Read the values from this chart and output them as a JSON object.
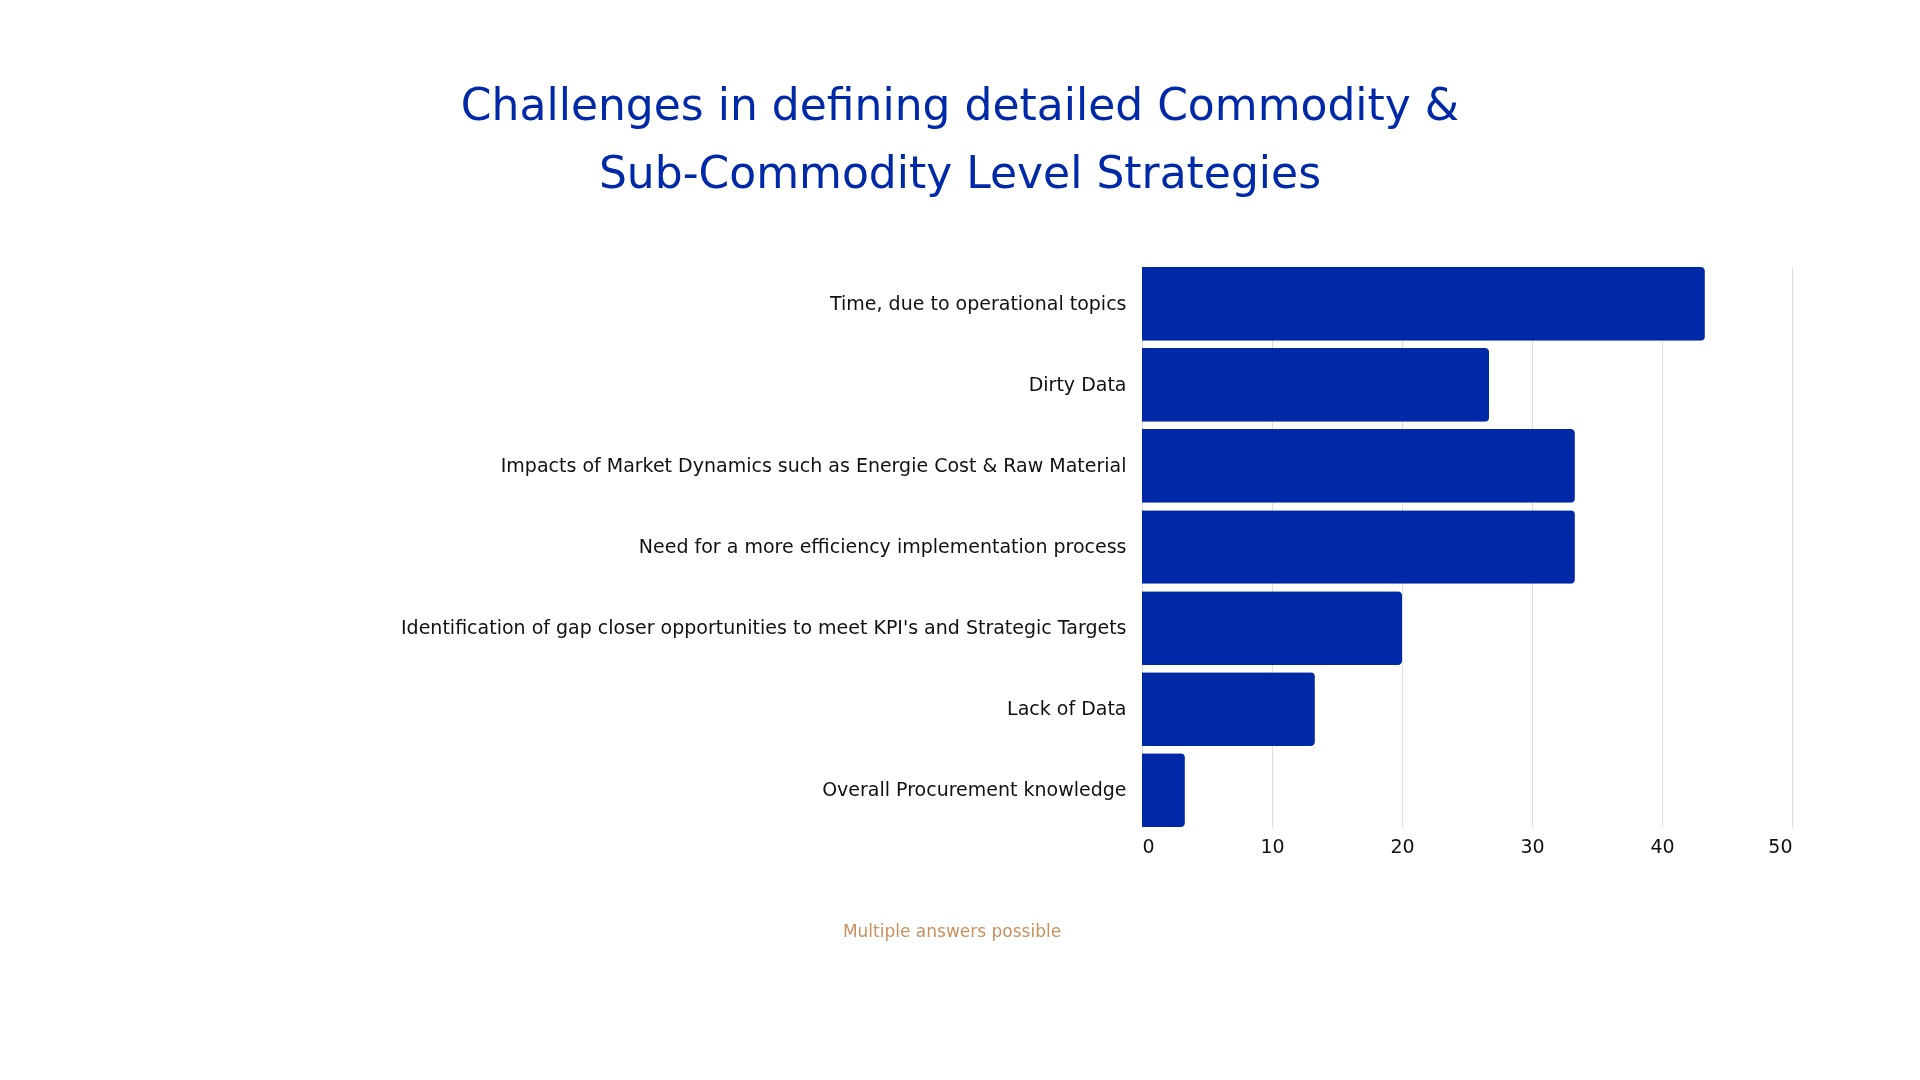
{
  "chart_data": {
    "type": "bar",
    "orientation": "horizontal",
    "title": [
      "Challenges in defining detailed Commodity &",
      "Sub-Commodity Level Strategies"
    ],
    "categories": [
      "Time, due to operational topics",
      "Dirty Data",
      "Impacts of Market Dynamics such as Energie Cost & Raw Material",
      "Need for a more efficiency implementation process",
      "Identification of gap closer opportunities to meet KPI's and Strategic Targets",
      "Lack of Data",
      "Overall Procurement knowledge"
    ],
    "values": [
      43.3,
      26.7,
      33.3,
      33.3,
      20.0,
      13.3,
      3.3
    ],
    "color": "#0029a8",
    "xlim": [
      0,
      50
    ],
    "xticks": [
      0,
      10,
      20,
      30,
      40,
      50
    ],
    "grid": "x",
    "annotations": [
      "Multiple answers possible"
    ]
  }
}
